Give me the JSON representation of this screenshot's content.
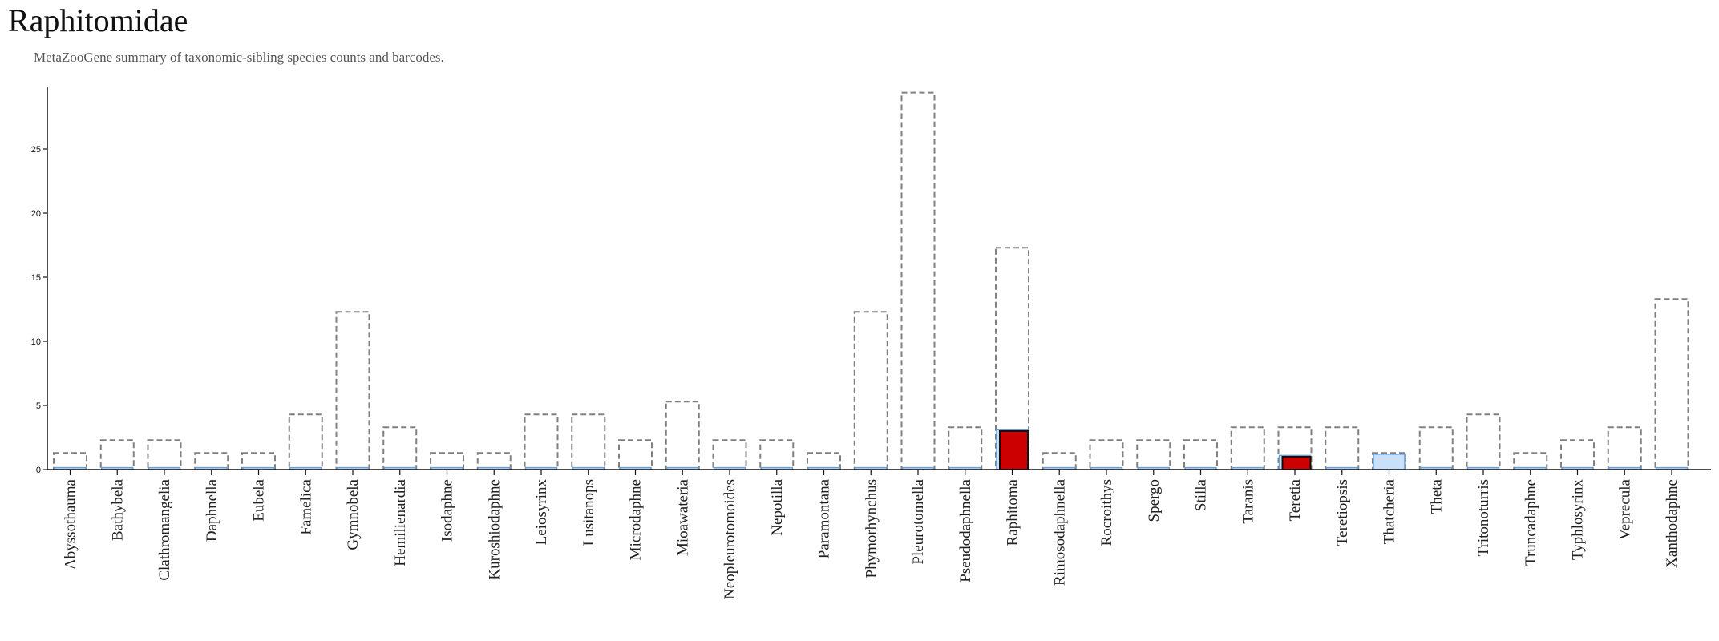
{
  "title": "Raphitomidae",
  "subtitle": "MetaZooGene summary of taxonomic-sibling species counts and barcodes.",
  "colors": {
    "outline": "#808080",
    "barcode_bar": "#c8e0fa",
    "barcode_edge": "#6a9fd8",
    "highlight": "#cc0000",
    "axis": "#111111"
  },
  "chart_data": {
    "type": "bar",
    "title": "Raphitomidae",
    "subtitle": "MetaZooGene summary of taxonomic-sibling species counts and barcodes.",
    "xlabel": "",
    "ylabel": "",
    "ylim": [
      0,
      29.5
    ],
    "yticks": [
      0,
      5,
      10,
      15,
      20,
      25
    ],
    "grid": false,
    "legend": "none",
    "categories": [
      "Abyssothauma",
      "Bathybela",
      "Clathromangelia",
      "Daphnella",
      "Eubela",
      "Famelica",
      "Gymnobela",
      "Hemilienardia",
      "Isodaphne",
      "Kuroshiodaphne",
      "Leiosyrinx",
      "Lusitanops",
      "Microdaphne",
      "Mioawateria",
      "Neopleurotomoides",
      "Nepotilla",
      "Paramontana",
      "Phymorhynchus",
      "Pleurotomella",
      "Pseudodaphnella",
      "Raphitoma",
      "Rimosodaphnella",
      "Rocroithys",
      "Spergo",
      "Stilla",
      "Taranis",
      "Teretia",
      "Teretiopsis",
      "Thatcheria",
      "Theta",
      "Tritonoturris",
      "Truncadaphne",
      "Typhlosyrinx",
      "Veprecula",
      "Xanthodaphne"
    ],
    "series": [
      {
        "values": [
          1.3,
          2.3,
          2.3,
          1.3,
          1.3,
          4.3,
          12.3,
          3.3,
          1.3,
          1.3,
          4.3,
          4.3,
          2.3,
          5.3,
          2.3,
          2.3,
          1.3,
          12.3,
          29.4,
          3.3,
          17.3,
          1.3,
          2.3,
          2.3,
          2.3,
          3.3,
          3.3,
          3.3,
          1.3,
          3.3,
          4.3,
          1.3,
          2.3,
          3.3,
          13.3
        ]
      },
      {
        "values": [
          0.15,
          0.15,
          0.15,
          0.15,
          0.15,
          0.15,
          0.15,
          0.15,
          0.15,
          0.15,
          0.15,
          0.15,
          0.15,
          0.15,
          0.15,
          0.15,
          0.15,
          0.15,
          0.15,
          0.15,
          3.1,
          0.15,
          0.15,
          0.15,
          0.15,
          0.15,
          1.1,
          0.15,
          1.2,
          0.15,
          0.15,
          0.15,
          0.15,
          0.15,
          0.15
        ]
      },
      {
        "values": [
          0,
          0,
          0,
          0,
          0,
          0,
          0,
          0,
          0,
          0,
          0,
          0,
          0,
          0,
          0,
          0,
          0,
          0,
          0,
          0,
          3,
          0,
          0,
          0,
          0,
          0,
          1,
          0,
          0,
          0,
          0,
          0,
          0,
          0,
          0
        ]
      }
    ]
  }
}
